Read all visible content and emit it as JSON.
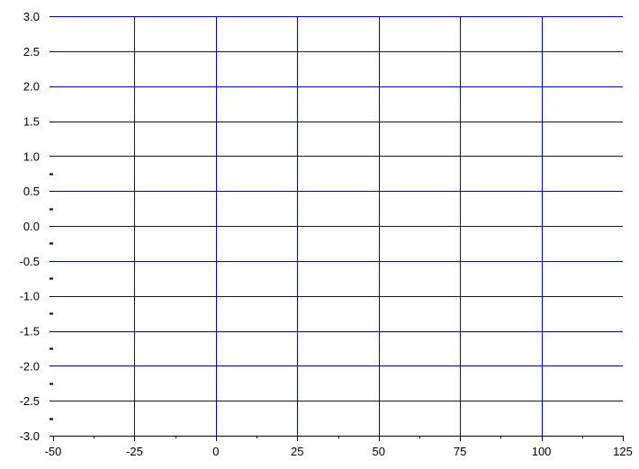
{
  "chart_data": {
    "type": "line",
    "title": "",
    "xlabel": "",
    "ylabel": "",
    "xlim": [
      -50,
      125
    ],
    "ylim": [
      -3.0,
      3.0
    ],
    "x_ticks": [
      -50,
      -25,
      0,
      25,
      50,
      75,
      100,
      125
    ],
    "x_tick_labels": [
      "-50",
      "-25",
      "0",
      "25",
      "50",
      "75",
      "100",
      "125"
    ],
    "x_minor_step": 12.5,
    "y_ticks": [
      3.0,
      2.5,
      2.0,
      1.5,
      1.0,
      0.5,
      0.0,
      -0.5,
      -1.0,
      -1.5,
      -2.0,
      -2.5,
      -3.0
    ],
    "y_tick_labels": [
      "3.0",
      "2.5",
      "2.0",
      "1.5",
      "1.0",
      "0.5",
      "0.0",
      "-0.5",
      "-1.0",
      "-1.5",
      "-2.0",
      "-2.5",
      "-3.0"
    ],
    "y_minor_step": 0.25,
    "grid": true,
    "grid_color": "#0000cc",
    "axis_color": "#000000",
    "series": []
  }
}
